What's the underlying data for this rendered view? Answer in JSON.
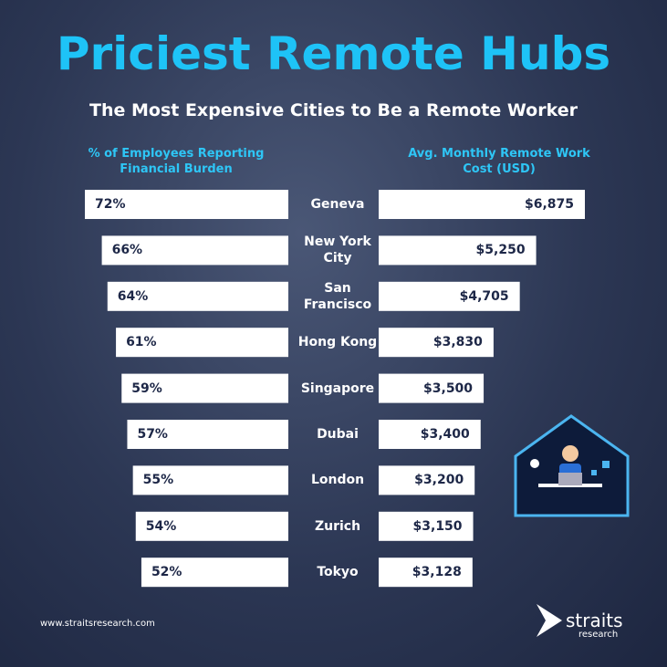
{
  "chart_data": {
    "type": "butterfly",
    "title": "Priciest Remote Hubs",
    "subtitle": "The Most Expensive Cities to Be a Remote Worker",
    "categories": [
      "Geneva",
      "New York City",
      "San Francisco",
      "Hong Kong",
      "Singapore",
      "Dubai",
      "London",
      "Zurich",
      "Tokyo"
    ],
    "series": [
      {
        "name": "% of Employees Reporting Financial Burden",
        "color": "#ffffff",
        "values": [
          72,
          66,
          64,
          61,
          59,
          57,
          55,
          54,
          52
        ],
        "value_labels": [
          "72%",
          "66%",
          "64%",
          "61%",
          "59%",
          "57%",
          "55%",
          "54%",
          "52%"
        ]
      },
      {
        "name": "Avg. Monthly Remote Work Cost (USD)",
        "color": "#ffffff",
        "values": [
          6875,
          5250,
          4705,
          3830,
          3500,
          3400,
          3200,
          3150,
          3128
        ],
        "value_labels": [
          "$6,875",
          "$5,250",
          "$4,705",
          "$3,830",
          "$3,500",
          "$3,400",
          "$3,200",
          "$3,150",
          "$3,128"
        ]
      }
    ]
  },
  "footer": {
    "website": "www.straitsresearch.com",
    "brand": "straits",
    "brand_sub": "research"
  }
}
